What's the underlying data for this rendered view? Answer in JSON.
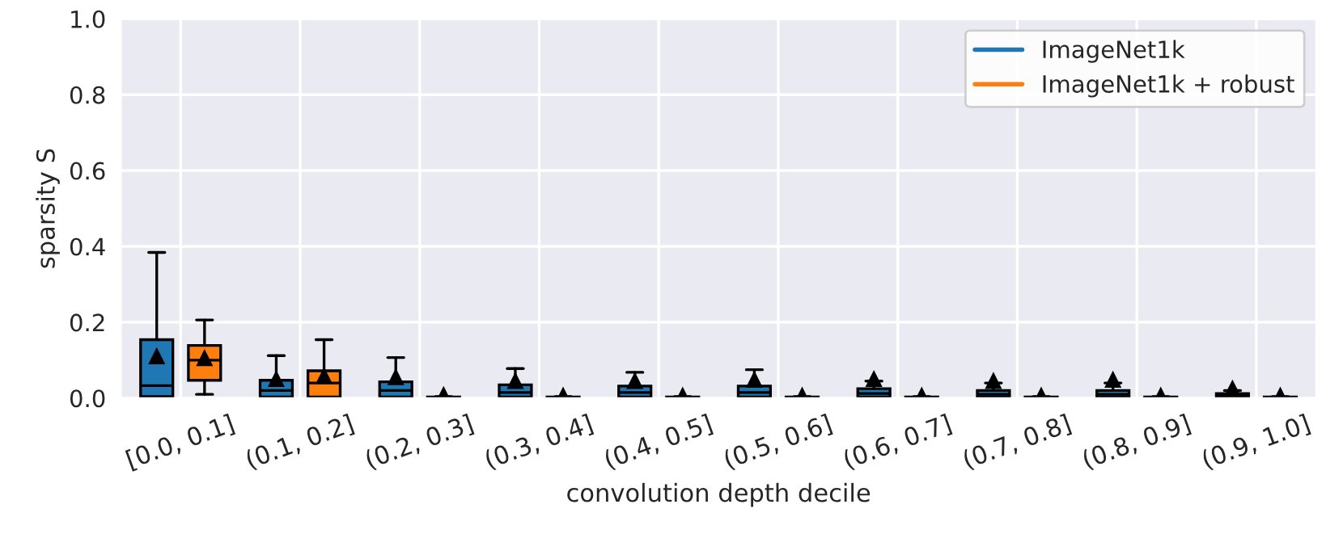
{
  "chart_data": {
    "type": "box",
    "xlabel": "convolution depth decile",
    "ylabel": "sparsity S",
    "categories": [
      "[0.0, 0.1]",
      "(0.1, 0.2]",
      "(0.2, 0.3]",
      "(0.3, 0.4]",
      "(0.4, 0.5]",
      "(0.5, 0.6]",
      "(0.6, 0.7]",
      "(0.7, 0.8]",
      "(0.8, 0.9]",
      "(0.9, 1.0]"
    ],
    "ylim": [
      0,
      1.0
    ],
    "yticks": [
      {
        "value": 0,
        "label": "0.0"
      },
      0.2,
      0.4,
      0.6,
      0.8,
      {
        "value": 1,
        "label": "1.0"
      }
    ],
    "grid": true,
    "legend": "top right",
    "marker": "triangle",
    "series": [
      {
        "name": "ImageNet1k",
        "color": "#1f77b4",
        "boxes": [
          {
            "low": 0,
            "q1": 0.004,
            "median": 0.033,
            "q3": 0.154,
            "high": 0.384,
            "mean": 0.11
          },
          {
            "low": 0,
            "q1": 0.003,
            "median": 0.02,
            "q3": 0.047,
            "high": 0.112,
            "mean": 0.05
          },
          {
            "low": 0,
            "q1": 0.003,
            "median": 0.02,
            "q3": 0.043,
            "high": 0.107,
            "mean": 0.055
          },
          {
            "low": 0,
            "q1": 0.003,
            "median": 0.015,
            "q3": 0.035,
            "high": 0.078,
            "mean": 0.045
          },
          {
            "low": 0,
            "q1": 0.003,
            "median": 0.015,
            "q3": 0.032,
            "high": 0.068,
            "mean": 0.045
          },
          {
            "low": 0,
            "q1": 0.003,
            "median": 0.015,
            "q3": 0.032,
            "high": 0.075,
            "mean": 0.048
          },
          {
            "low": 0,
            "q1": 0.003,
            "median": 0.012,
            "q3": 0.025,
            "high": 0.045,
            "mean": 0.05
          },
          {
            "low": 0,
            "q1": 0.003,
            "median": 0.01,
            "q3": 0.02,
            "high": 0.04,
            "mean": 0.045
          },
          {
            "low": 0,
            "q1": 0.003,
            "median": 0.01,
            "q3": 0.02,
            "high": 0.04,
            "mean": 0.048
          },
          {
            "low": 0,
            "q1": 0.002,
            "median": 0.006,
            "q3": 0.012,
            "high": 0.02,
            "mean": 0.025
          }
        ]
      },
      {
        "name": "ImageNet1k + robust",
        "color": "#ff7f0e",
        "boxes": [
          {
            "low": 0.01,
            "q1": 0.047,
            "median": 0.1,
            "q3": 0.139,
            "high": 0.206,
            "mean": 0.105
          },
          {
            "low": 0,
            "q1": 0.003,
            "median": 0.04,
            "q3": 0.072,
            "high": 0.154,
            "mean": 0.058
          },
          {
            "low": 0,
            "q1": 0.001,
            "median": 0.002,
            "q3": 0.003,
            "high": 0.004,
            "mean": 0.008
          },
          {
            "low": 0,
            "q1": 0.001,
            "median": 0.002,
            "q3": 0.003,
            "high": 0.004,
            "mean": 0.006
          },
          {
            "low": 0,
            "q1": 0.001,
            "median": 0.002,
            "q3": 0.003,
            "high": 0.004,
            "mean": 0.006
          },
          {
            "low": 0,
            "q1": 0.001,
            "median": 0.002,
            "q3": 0.003,
            "high": 0.004,
            "mean": 0.006
          },
          {
            "low": 0,
            "q1": 0.001,
            "median": 0.002,
            "q3": 0.003,
            "high": 0.004,
            "mean": 0.006
          },
          {
            "low": 0,
            "q1": 0.001,
            "median": 0.002,
            "q3": 0.003,
            "high": 0.004,
            "mean": 0.006
          },
          {
            "low": 0,
            "q1": 0.001,
            "median": 0.002,
            "q3": 0.003,
            "high": 0.004,
            "mean": 0.006
          },
          {
            "low": 0,
            "q1": 0.001,
            "median": 0.002,
            "q3": 0.003,
            "high": 0.004,
            "mean": 0.006
          }
        ]
      }
    ]
  }
}
